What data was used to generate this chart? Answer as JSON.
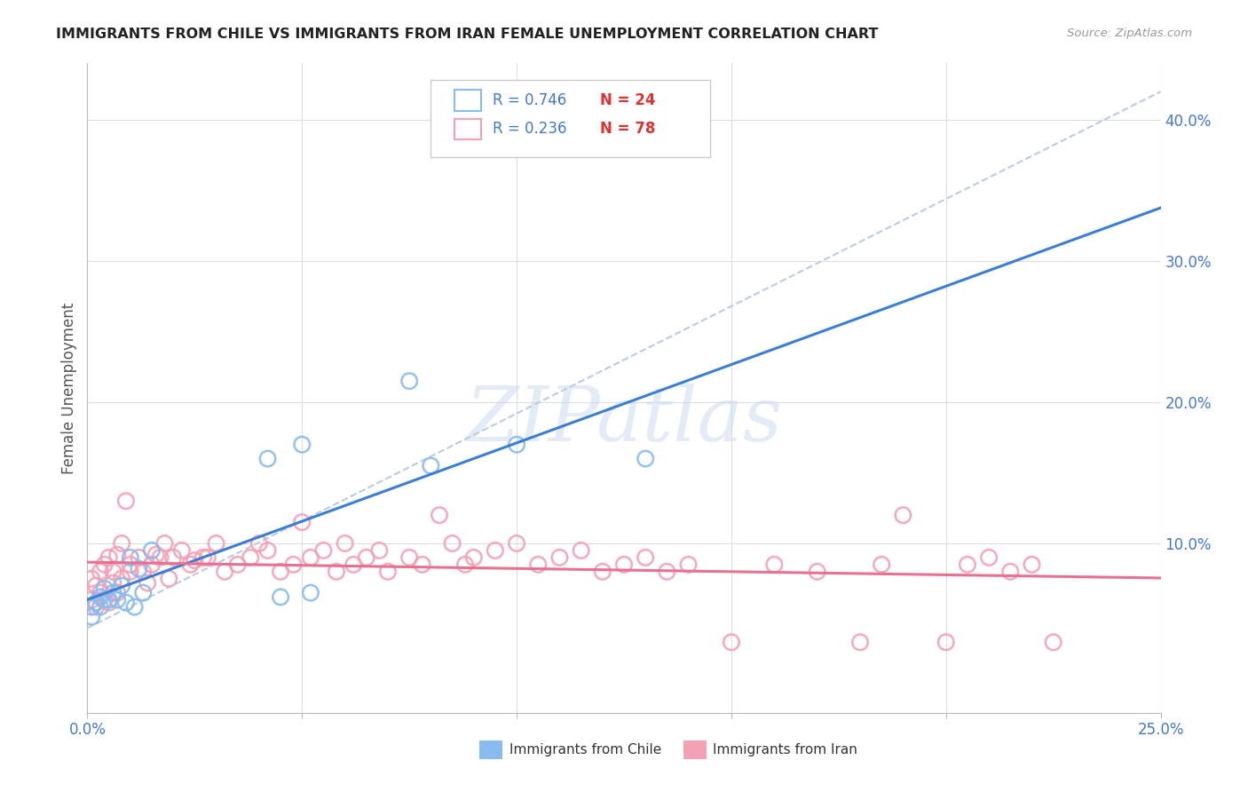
{
  "title": "IMMIGRANTS FROM CHILE VS IMMIGRANTS FROM IRAN FEMALE UNEMPLOYMENT CORRELATION CHART",
  "source": "Source: ZipAtlas.com",
  "ylabel": "Female Unemployment",
  "xlim": [
    0.0,
    0.25
  ],
  "ylim": [
    -0.02,
    0.44
  ],
  "color_chile": "#88bbee",
  "color_iran": "#f4a0b5",
  "trendline_chile_color": "#3a7fd5",
  "trendline_iran_color": "#e87090",
  "dashed_line_color": "#bbccdd",
  "watermark": "ZIPatlas",
  "legend_R_chile": "R = 0.746",
  "legend_N_chile": "N = 24",
  "legend_R_iran": "R = 0.236",
  "legend_N_iran": "N = 78",
  "chile_x": [
    0.001,
    0.001,
    0.002,
    0.003,
    0.003,
    0.004,
    0.005,
    0.006,
    0.007,
    0.008,
    0.009,
    0.01,
    0.011,
    0.012,
    0.013,
    0.015,
    0.042,
    0.045,
    0.05,
    0.052,
    0.075,
    0.08,
    0.1,
    0.13
  ],
  "chile_y": [
    0.055,
    0.048,
    0.058,
    0.062,
    0.055,
    0.068,
    0.06,
    0.065,
    0.06,
    0.07,
    0.058,
    0.09,
    0.055,
    0.082,
    0.065,
    0.095,
    0.16,
    0.062,
    0.17,
    0.065,
    0.215,
    0.155,
    0.17,
    0.16
  ],
  "iran_x": [
    0.001,
    0.001,
    0.002,
    0.002,
    0.003,
    0.003,
    0.004,
    0.004,
    0.005,
    0.005,
    0.006,
    0.006,
    0.007,
    0.007,
    0.008,
    0.008,
    0.009,
    0.01,
    0.01,
    0.012,
    0.013,
    0.014,
    0.015,
    0.016,
    0.017,
    0.018,
    0.019,
    0.02,
    0.022,
    0.024,
    0.025,
    0.027,
    0.028,
    0.03,
    0.032,
    0.035,
    0.038,
    0.04,
    0.042,
    0.045,
    0.048,
    0.05,
    0.052,
    0.055,
    0.058,
    0.06,
    0.062,
    0.065,
    0.068,
    0.07,
    0.075,
    0.078,
    0.082,
    0.085,
    0.088,
    0.09,
    0.095,
    0.1,
    0.105,
    0.11,
    0.115,
    0.12,
    0.125,
    0.13,
    0.135,
    0.14,
    0.15,
    0.16,
    0.17,
    0.18,
    0.185,
    0.19,
    0.2,
    0.205,
    0.21,
    0.215,
    0.22,
    0.225
  ],
  "iran_y": [
    0.06,
    0.075,
    0.07,
    0.055,
    0.08,
    0.065,
    0.085,
    0.06,
    0.09,
    0.058,
    0.072,
    0.08,
    0.092,
    0.065,
    0.1,
    0.075,
    0.13,
    0.08,
    0.085,
    0.09,
    0.08,
    0.072,
    0.085,
    0.092,
    0.09,
    0.1,
    0.075,
    0.09,
    0.095,
    0.085,
    0.088,
    0.09,
    0.09,
    0.1,
    0.08,
    0.085,
    0.09,
    0.1,
    0.095,
    0.08,
    0.085,
    0.115,
    0.09,
    0.095,
    0.08,
    0.1,
    0.085,
    0.09,
    0.095,
    0.08,
    0.09,
    0.085,
    0.12,
    0.1,
    0.085,
    0.09,
    0.095,
    0.1,
    0.085,
    0.09,
    0.095,
    0.08,
    0.085,
    0.09,
    0.08,
    0.085,
    0.03,
    0.085,
    0.08,
    0.03,
    0.085,
    0.12,
    0.03,
    0.085,
    0.09,
    0.08,
    0.085,
    0.03
  ]
}
